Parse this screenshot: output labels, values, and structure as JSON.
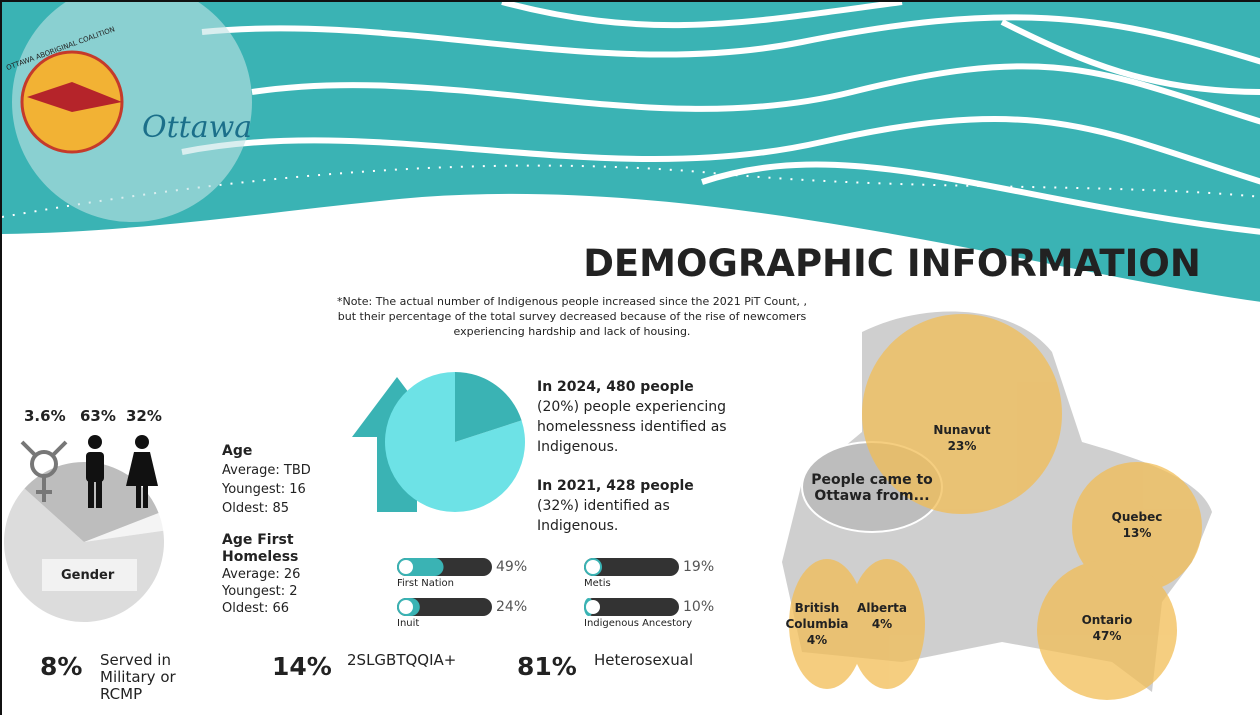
{
  "logos": {
    "coalition": "OTTAWA ABORIGINAL COALITION",
    "city": "Ottawa"
  },
  "title": "DEMOGRAPHIC INFORMATION",
  "note": "*Note: The actual number of Indigenous people increased since the 2021 PiT Count, , but their percentage of the total survey decreased because of the rise of newcomers experiencing hardship and lack of housing.",
  "gender": {
    "label": "Gender",
    "items": [
      {
        "value": 3.6,
        "label": "3.6%"
      },
      {
        "value": 63,
        "label": "63%"
      },
      {
        "value": 32,
        "label": "32%"
      }
    ]
  },
  "age": {
    "title": "Age",
    "lines": [
      "Average: TBD",
      "Youngest: 16",
      "Oldest: 85"
    ],
    "first_title": "Age First Homeless",
    "first_lines": [
      "Average: 26",
      "Youngest: 2",
      "Oldest: 66"
    ]
  },
  "indigenous": {
    "value": 20,
    "y2024_bold": "In 2024, 480 people",
    "y2024_pct": "(20%)",
    "y2024_text": "people experiencing homelessness identified as Indigenous.",
    "y2021_bold": "In 2021, 428 people",
    "y2021_pct": "(32%)",
    "y2021_text": "identified as Indigenous."
  },
  "groups": [
    {
      "name": "First Nation",
      "value": 49,
      "label": "49%"
    },
    {
      "name": "Metis",
      "value": 19,
      "label": "19%"
    },
    {
      "name": "Inuit",
      "value": 24,
      "label": "24%"
    },
    {
      "name": "Indigenous Ancestory",
      "value": 10,
      "label": "10%"
    }
  ],
  "stats": [
    {
      "value": "8%",
      "text": "Served in Military or RCMP"
    },
    {
      "value": "14%",
      "text": "2SLGBTQQIA+"
    },
    {
      "value": "81%",
      "text": "Heterosexual"
    }
  ],
  "origin": {
    "label": "People came to Ottawa from...",
    "regions": [
      {
        "name": "Nunavut",
        "label": "23%"
      },
      {
        "name": "Quebec",
        "label": "13%"
      },
      {
        "name": "Ontario",
        "label": "47%"
      },
      {
        "name": "British Columbia",
        "label": "4%"
      },
      {
        "name": "Alberta",
        "label": "4%"
      }
    ]
  }
}
